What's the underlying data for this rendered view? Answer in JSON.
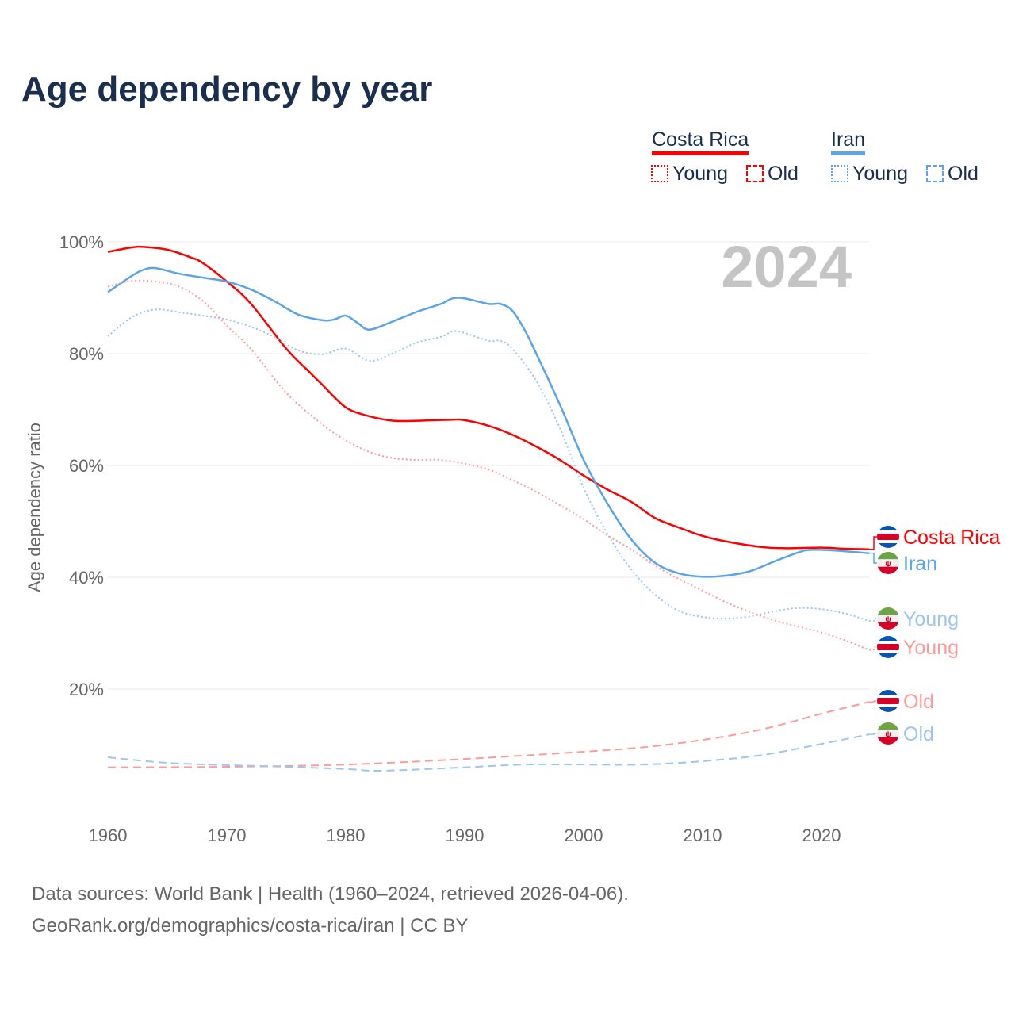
{
  "title": "Age dependency by year",
  "legend": {
    "countries": [
      {
        "name": "Costa Rica",
        "color": "#ff0000"
      },
      {
        "name": "Iran",
        "color": "#5aa5e8"
      }
    ],
    "young": "Young",
    "old": "Old"
  },
  "year_label": "2024",
  "source": {
    "line1": "Data sources: World Bank | Health (1960–2024, retrieved 2026-04-06).",
    "line2": "GeoRank.org/demographics/costa-rica/iran | CC BY"
  },
  "chart_data": {
    "type": "line",
    "title": "Age dependency by year",
    "xlabel": "",
    "ylabel": "Age dependency ratio",
    "xlim": [
      1960,
      2024
    ],
    "ylim": [
      0,
      100
    ],
    "xticks": [
      "1960",
      "1970",
      "1980",
      "1990",
      "2000",
      "2010",
      "2020"
    ],
    "yticks": [
      {
        "v": 20,
        "label": "20%"
      },
      {
        "v": 40,
        "label": "40%"
      },
      {
        "v": 60,
        "label": "60%"
      },
      {
        "v": 80,
        "label": "80%"
      },
      {
        "v": 100,
        "label": "100%"
      }
    ],
    "series": [
      {
        "name": "Costa Rica",
        "label": "Costa Rica",
        "country": "cr",
        "style": "solid",
        "color": "#ff0000",
        "x": [
          1960,
          1962,
          1963,
          1965,
          1967,
          1968,
          1970,
          1972,
          1975,
          1977,
          1978,
          1980,
          1982,
          1984,
          1986,
          1989,
          1990,
          1992,
          1994,
          1996,
          1998,
          2000,
          2002,
          2004,
          2006,
          2008,
          2010,
          2012,
          2015,
          2017,
          2020,
          2022,
          2024
        ],
        "y": [
          98.2,
          99,
          99.1,
          98.6,
          97.2,
          96.2,
          92.9,
          89,
          80.9,
          76.6,
          74.5,
          70.4,
          68.8,
          68,
          68,
          68.2,
          68.1,
          67.1,
          65.5,
          63.4,
          61,
          58.2,
          55.7,
          53.5,
          50.6,
          48.9,
          47.4,
          46.4,
          45.4,
          45.2,
          45.3,
          45.1,
          45
        ]
      },
      {
        "name": "Iran",
        "label": "Iran",
        "country": "ir",
        "style": "solid",
        "color": "#5aa5e8",
        "x": [
          1960,
          1962,
          1963,
          1964,
          1966,
          1968,
          1970,
          1972,
          1974,
          1976,
          1978,
          1979,
          1980,
          1981,
          1982,
          1984,
          1986,
          1988,
          1989,
          1990,
          1992,
          1993,
          1994,
          1995,
          1996,
          1998,
          2000,
          2002,
          2004,
          2006,
          2008,
          2010,
          2012,
          2014,
          2016,
          2018,
          2019,
          2021,
          2024
        ],
        "y": [
          91,
          93.9,
          95,
          95.3,
          94.3,
          93.6,
          92.9,
          91.5,
          89.4,
          87,
          86,
          86.1,
          86.8,
          85.5,
          84.3,
          85.8,
          87.5,
          88.9,
          89.9,
          89.9,
          88.9,
          88.9,
          87.7,
          84.4,
          80.1,
          70.9,
          61,
          53.2,
          46.8,
          42.6,
          40.7,
          40.1,
          40.3,
          41.1,
          42.8,
          44.4,
          44.9,
          44.8,
          44.3
        ]
      },
      {
        "name": "Iran Young",
        "label": "Young",
        "country": "ir",
        "style": "dotted",
        "color": "#9cc6ef",
        "x": [
          1960,
          1962,
          1964,
          1966,
          1968,
          1970,
          1972,
          1974,
          1976,
          1978,
          1980,
          1982,
          1984,
          1986,
          1988,
          1989,
          1990,
          1992,
          1993,
          1994,
          1996,
          1998,
          2000,
          2002,
          2004,
          2006,
          2008,
          2010,
          2012,
          2014,
          2016,
          2018,
          2020,
          2022,
          2024
        ],
        "y": [
          83.1,
          86.5,
          87.9,
          87.4,
          86.8,
          86.1,
          84.8,
          83,
          80.6,
          79.9,
          80.9,
          78.7,
          80.1,
          82,
          83,
          84,
          83.7,
          82.3,
          82.3,
          80.9,
          75.2,
          66.7,
          56,
          47.8,
          41.4,
          36.9,
          34,
          32.9,
          32.6,
          33,
          33.9,
          34.5,
          34.3,
          33.5,
          32.2
        ]
      },
      {
        "name": "Costa Rica Young",
        "label": "Young",
        "country": "cr",
        "style": "dotted",
        "color": "#ff9a9a",
        "x": [
          1960,
          1962,
          1964,
          1966,
          1968,
          1970,
          1972,
          1975,
          1978,
          1980,
          1982,
          1984,
          1986,
          1988,
          1990,
          1992,
          1994,
          1996,
          1998,
          2000,
          2002,
          2004,
          2006,
          2008,
          2010,
          2012,
          2014,
          2016,
          2018,
          2020,
          2022,
          2024
        ],
        "y": [
          92,
          93,
          92.9,
          92,
          89.4,
          85,
          80.9,
          73,
          67.4,
          64.5,
          62.4,
          61.3,
          61,
          61,
          60.3,
          59.3,
          57.4,
          55.3,
          52.9,
          50.4,
          47.5,
          45,
          42.1,
          39.7,
          37.6,
          35.5,
          33.8,
          32.3,
          31.2,
          30.1,
          28.7,
          27
        ]
      },
      {
        "name": "Costa Rica Old",
        "label": "Old",
        "country": "cr",
        "style": "dashed",
        "color": "#ff9a9a",
        "x": [
          1960,
          1970,
          1980,
          1990,
          2000,
          2005,
          2010,
          2015,
          2020,
          2024
        ],
        "y": [
          6,
          6.1,
          6.5,
          7.5,
          8.8,
          9.6,
          10.9,
          12.8,
          15.6,
          17.7
        ]
      },
      {
        "name": "Iran Old",
        "label": "Old",
        "country": "ir",
        "style": "dashed",
        "color": "#9cc6ef",
        "x": [
          1960,
          1965,
          1970,
          1975,
          1980,
          1983,
          1990,
          1995,
          2000,
          2005,
          2010,
          2015,
          2020,
          2024
        ],
        "y": [
          7.8,
          6.8,
          6.4,
          6.1,
          5.7,
          5.4,
          6,
          6.5,
          6.5,
          6.5,
          7.1,
          8.2,
          10.2,
          11.9
        ]
      }
    ]
  }
}
